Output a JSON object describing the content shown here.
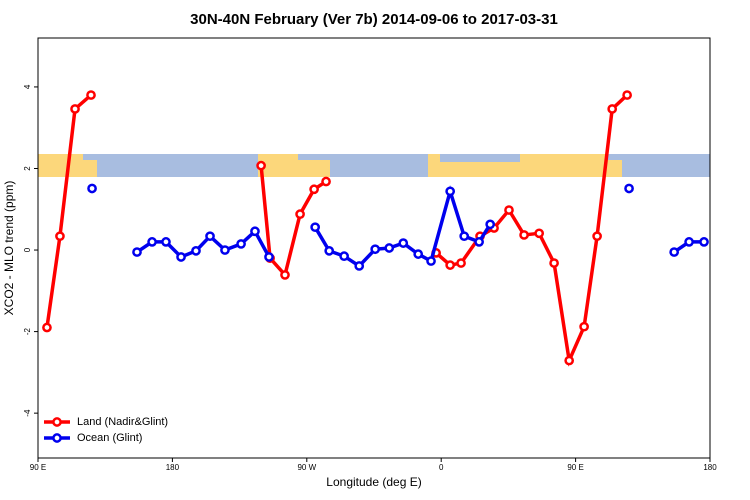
{
  "chart_data": {
    "type": "line",
    "title": "30N-40N February (Ver 7b)   2014-09-06 to 2017-03-31",
    "xlabel": "Longitude (deg E)",
    "ylabel": "XCO2 - MLO trend (ppm)",
    "xlim": [
      90,
      540
    ],
    "ylim": [
      -5.1,
      5.2
    ],
    "xticks": [
      {
        "value": 90,
        "label": "90 E"
      },
      {
        "value": 180,
        "label": "180"
      },
      {
        "value": 270,
        "label": "90 W"
      },
      {
        "value": 360,
        "label": "0"
      },
      {
        "value": 450,
        "label": "90 E"
      },
      {
        "value": 540,
        "label": "180"
      }
    ],
    "yticks": [
      -4,
      -2,
      0,
      2,
      4
    ],
    "legend": "bottom-left",
    "series": [
      {
        "name": "Land (Nadir&Glint)",
        "color": "#ff0000",
        "x": [
          96,
          104.7,
          114.8,
          125.5,
          null,
          239.4,
          245.4,
          255.4,
          265.5,
          274.9,
          282.9,
          null,
          356.6,
          366,
          373.3,
          386,
          395.4,
          405.4,
          415.5,
          425.6,
          435.6,
          445.7,
          455.7,
          464.4,
          474.5,
          484.5
        ],
        "values": [
          -1.9,
          0.34,
          3.46,
          3.8,
          null,
          2.07,
          -0.2,
          -0.61,
          0.88,
          1.49,
          1.68,
          null,
          -0.07,
          -0.37,
          -0.32,
          0.34,
          0.54,
          0.98,
          0.37,
          0.41,
          -0.32,
          -2.71,
          -1.88,
          0.34,
          3.46,
          3.8
        ]
      },
      {
        "name": "Ocean (Glint)",
        "color": "#0000ee",
        "x": [
          126.2,
          null,
          156.3,
          166.4,
          175.7,
          185.8,
          195.8,
          205.2,
          215.2,
          226,
          235.3,
          244.7,
          null,
          275.6,
          285,
          295,
          305.1,
          315.8,
          325.2,
          334.6,
          344.6,
          353.2,
          366,
          375.4,
          385.4,
          392.8,
          null,
          485.8,
          null,
          516,
          526,
          536
        ],
        "values": [
          1.51,
          null,
          -0.05,
          0.2,
          0.2,
          -0.17,
          -0.02,
          0.34,
          0,
          0.15,
          0.46,
          -0.17,
          null,
          0.56,
          -0.02,
          -0.15,
          -0.39,
          0.02,
          0.05,
          0.17,
          -0.1,
          -0.27,
          1.44,
          0.34,
          0.2,
          0.63,
          null,
          1.51,
          null,
          -0.05,
          0.2,
          0.2
        ]
      }
    ]
  }
}
